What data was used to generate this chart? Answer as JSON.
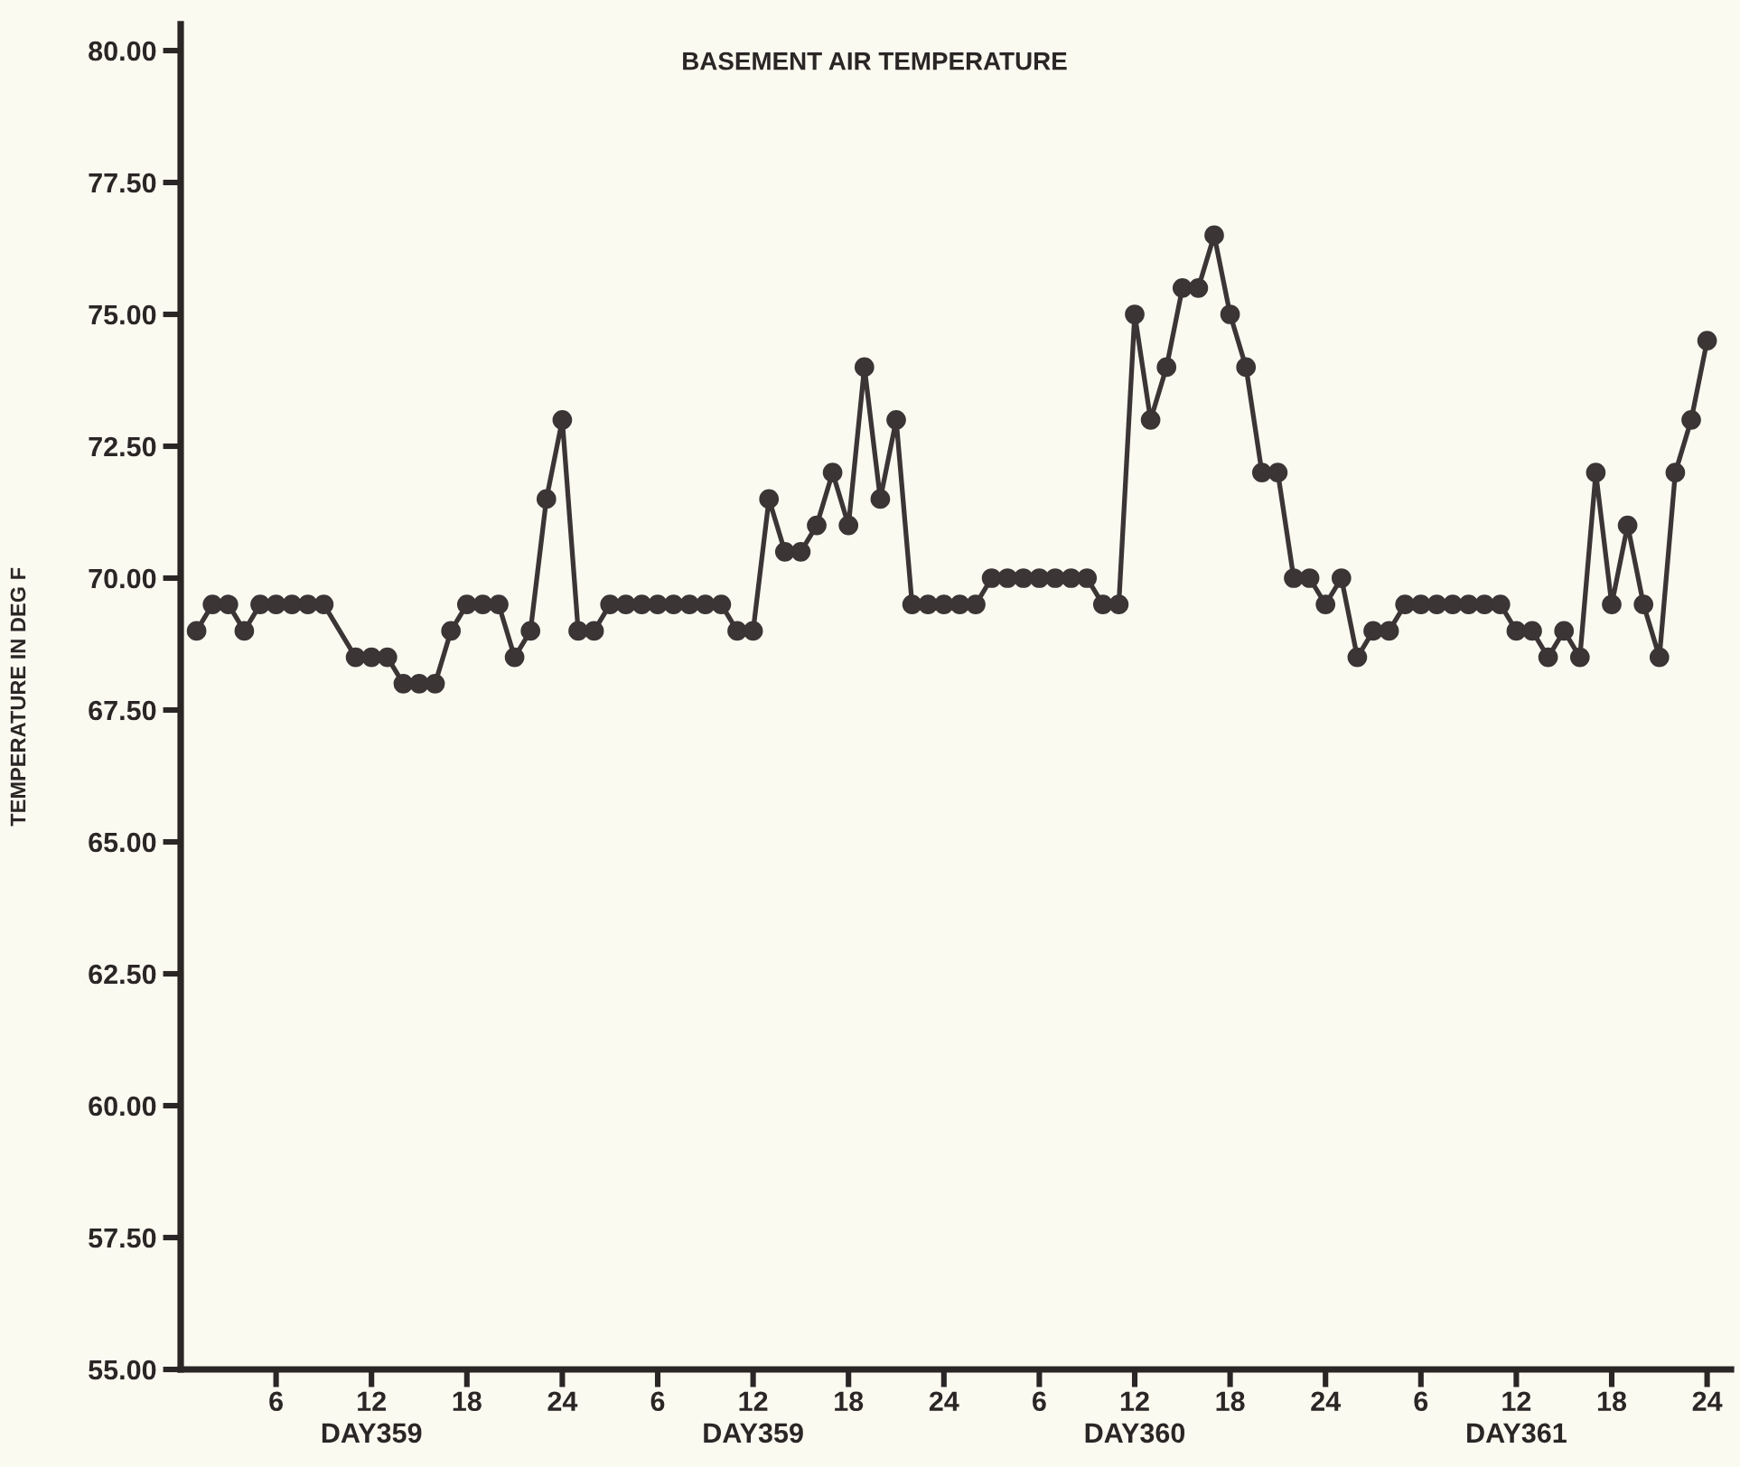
{
  "chart_data": {
    "type": "line",
    "title": "BASEMENT AIR TEMPERATURE",
    "ylabel": "TEMPERATURE IN DEG F",
    "categories": [
      null,
      null,
      null,
      null,
      null,
      "6",
      null,
      null,
      null,
      null,
      null,
      "12\nDAY359",
      null,
      null,
      null,
      null,
      null,
      "18",
      null,
      null,
      null,
      null,
      null,
      "24",
      null,
      null,
      null,
      null,
      null,
      "6",
      null,
      null,
      null,
      null,
      null,
      "12\nDAY359",
      null,
      null,
      null,
      null,
      null,
      "18",
      null,
      null,
      null,
      null,
      null,
      "24",
      null,
      null,
      null,
      null,
      null,
      "6",
      null,
      null,
      null,
      null,
      null,
      "12\nDAY360",
      null,
      null,
      null,
      null,
      null,
      "18",
      null,
      null,
      null,
      null,
      null,
      "24",
      null,
      null,
      null,
      null,
      null,
      "6",
      null,
      null,
      null,
      null,
      null,
      "12\nDAY361",
      null,
      null,
      null,
      null,
      null,
      "18",
      null,
      null,
      null,
      null,
      null,
      "24"
    ],
    "values": [
      69,
      69.5,
      69.5,
      69,
      69.5,
      69.5,
      69.5,
      69.5,
      69.5,
      null,
      68.5,
      68.5,
      68.5,
      68,
      68,
      68,
      69,
      69.5,
      69.5,
      69.5,
      68.5,
      69,
      71.5,
      73,
      69,
      69,
      69.5,
      69.5,
      69.5,
      69.5,
      69.5,
      69.5,
      69.5,
      69.5,
      69,
      69,
      71.5,
      70.5,
      70.5,
      71,
      72,
      71,
      74,
      71.5,
      73,
      69.5,
      69.5,
      69.5,
      69.5,
      69.5,
      70,
      70,
      70,
      70,
      70,
      70,
      70,
      69.5,
      69.5,
      75,
      73,
      74,
      75.5,
      75.5,
      76.5,
      75,
      74,
      72,
      72,
      70,
      70,
      69.5,
      70,
      68.5,
      69,
      69,
      69.5,
      69.5,
      69.5,
      69.5,
      69.5,
      69.5,
      69.5,
      69,
      69,
      68.5,
      69,
      68.5,
      72,
      69.5,
      71,
      69.5,
      68.5,
      72,
      73,
      74.5
    ],
    "color": "#3b3536",
    "marker": "circle",
    "line_style": "solid",
    "ylim": [
      55,
      80.5
    ],
    "yticks": [
      {
        "value": 55,
        "label": "55.00"
      },
      {
        "value": 57.5,
        "label": "57.50"
      },
      {
        "value": 60,
        "label": "60.00"
      },
      {
        "value": 62.5,
        "label": "62.50"
      },
      {
        "value": 65,
        "label": "65.00"
      },
      {
        "value": 67.5,
        "label": "67.50"
      },
      {
        "value": 70,
        "label": "70.00"
      },
      {
        "value": 72.5,
        "label": "72.50"
      },
      {
        "value": 75,
        "label": "75.00"
      },
      {
        "value": 77.5,
        "label": "77.50"
      },
      {
        "value": 80,
        "label": "80.00"
      }
    ]
  }
}
